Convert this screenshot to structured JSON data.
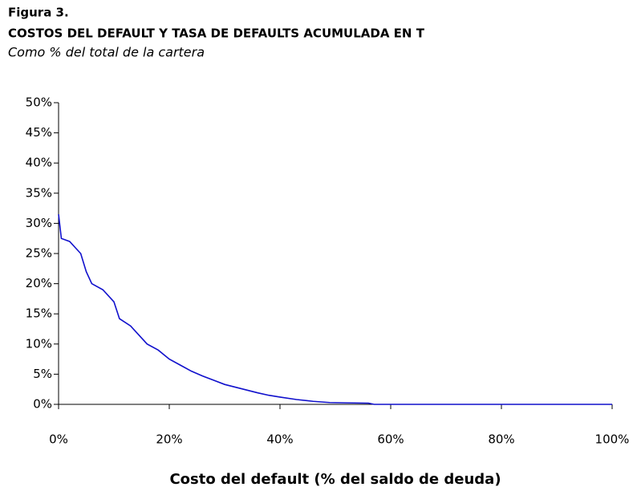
{
  "chart_data": {
    "type": "line",
    "figure_label": "Figura 3.",
    "title": "COSTOS DEL DEFAULT Y TASA DE DEFAULTS ACUMULADA EN T",
    "subtitle": "Como % del total de la cartera",
    "x_label": "Costo del default (% del saldo de deuda)",
    "x": [
      0,
      0.5,
      2,
      3,
      4,
      5,
      6,
      8,
      10,
      11,
      13,
      15,
      16,
      18,
      20,
      22,
      24,
      26,
      28,
      30,
      33,
      36,
      38,
      40,
      43,
      46,
      49,
      52,
      56,
      57,
      100
    ],
    "series": [
      {
        "name": "Tasa de defaults acumulada",
        "color": "#1010cc",
        "values": [
          31.5,
          27.5,
          27,
          26,
          25,
          22,
          20,
          19,
          17,
          14.2,
          13,
          11,
          10,
          9,
          7.5,
          6.5,
          5.5,
          4.7,
          4,
          3.3,
          2.6,
          1.9,
          1.5,
          1.2,
          0.8,
          0.5,
          0.3,
          0.25,
          0.2,
          0,
          0
        ]
      }
    ],
    "xlim": [
      0,
      100
    ],
    "xticks": [
      {
        "value": 0,
        "label": "0%"
      },
      {
        "value": 20,
        "label": "20%"
      },
      {
        "value": 40,
        "label": "40%"
      },
      {
        "value": 60,
        "label": "60%"
      },
      {
        "value": 80,
        "label": "80%"
      },
      {
        "value": 100,
        "label": "100%"
      }
    ],
    "ylim": [
      0,
      50
    ],
    "yticks": [
      {
        "value": 0,
        "label": "0%"
      },
      {
        "value": 5,
        "label": "5%"
      },
      {
        "value": 10,
        "label": "10%"
      },
      {
        "value": 15,
        "label": "15%"
      },
      {
        "value": 20,
        "label": "20%"
      },
      {
        "value": 25,
        "label": "25%"
      },
      {
        "value": 30,
        "label": "30%"
      },
      {
        "value": 35,
        "label": "35%"
      },
      {
        "value": 40,
        "label": "40%"
      },
      {
        "value": 45,
        "label": "45%"
      },
      {
        "value": 50,
        "label": "50%"
      }
    ],
    "grid": false
  }
}
